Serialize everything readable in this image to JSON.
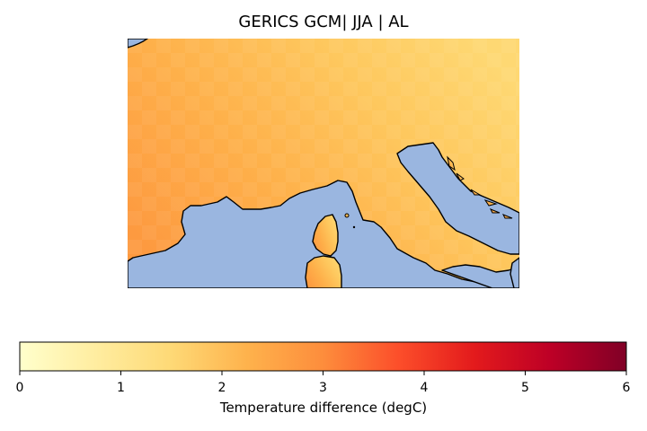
{
  "figure": {
    "title": "GERICS GCM| JJA | AL"
  },
  "map": {
    "region": "Western Mediterranean: Gulf of Lion, Ligurian Sea, Corsica, northern Sardinia, Italy, Adriatic",
    "ocean_color": "#9ab6e0",
    "coastline_color": "#000000",
    "field_description": "Land-area temperature difference, ~2.4 degC in west decreasing to ~1.6 degC in east"
  },
  "colorbar": {
    "label": "Temperature difference (degC)",
    "colormap": "YlOrRd",
    "ticks": [
      "0",
      "1",
      "2",
      "3",
      "4",
      "5",
      "6"
    ],
    "range": [
      0,
      6
    ]
  },
  "colormap_stops": [
    "#ffffcc",
    "#ffeda0",
    "#fed976",
    "#feb24c",
    "#fd8d3c",
    "#fc4e2a",
    "#e31a1c",
    "#bd0026",
    "#800026"
  ]
}
